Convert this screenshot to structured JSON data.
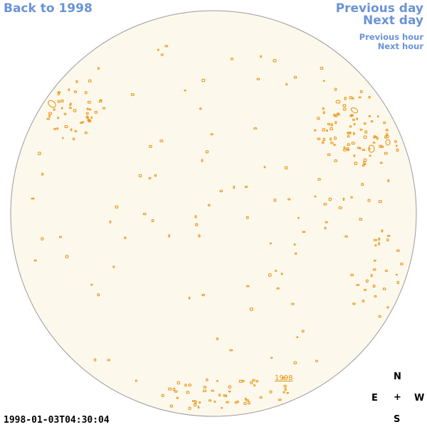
{
  "nav": {
    "back": "Back to 1998",
    "prev_day": "Previous day",
    "next_day": "Next day",
    "prev_hour": "Previous hour",
    "next_hour": "Next hour"
  },
  "map": {
    "marker_label": "1998",
    "disk_fill": "#fdf8ec",
    "disk_stroke": "#9a9a9a",
    "feature_color": "#e8900a"
  },
  "compass": {
    "north": "N",
    "east": "E",
    "center": "+",
    "west": "W",
    "south": "S"
  },
  "timestamp": "1998-01-03T04:30:04"
}
